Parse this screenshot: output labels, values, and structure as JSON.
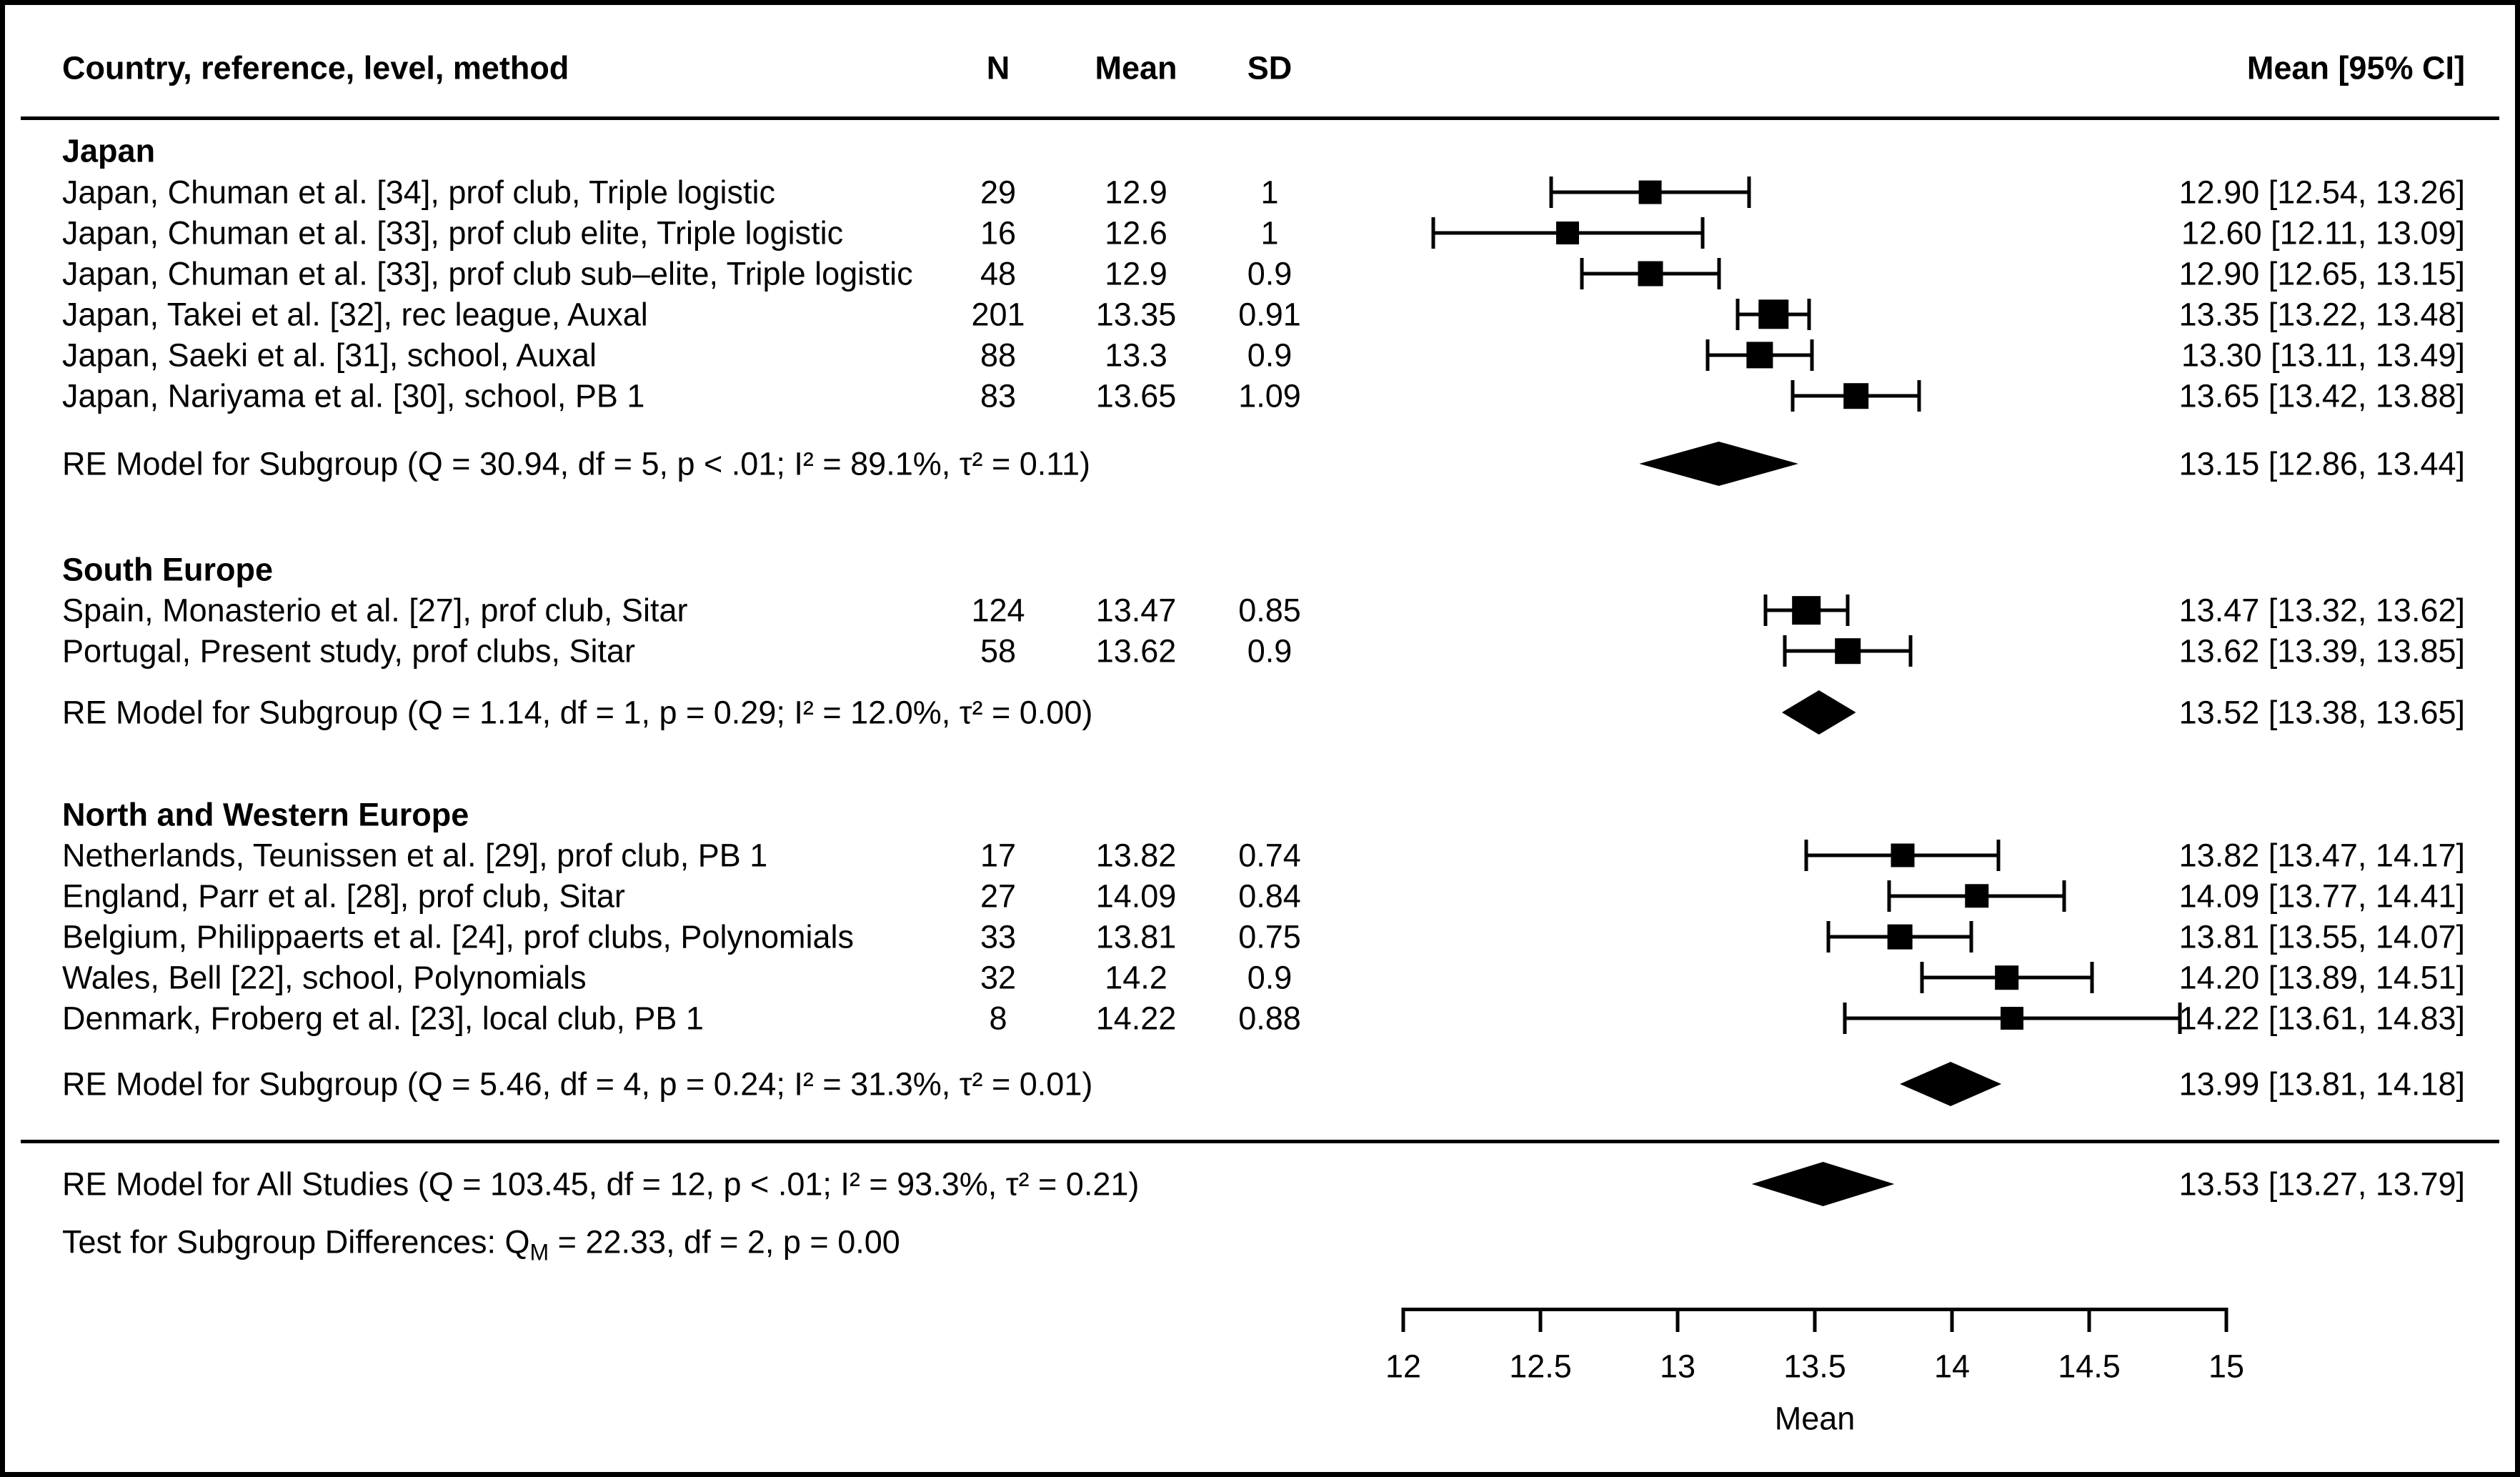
{
  "header": {
    "col_label": "Country, reference, level, method",
    "col_n": "N",
    "col_mean": "Mean",
    "col_sd": "SD",
    "col_ci": "Mean [95% CI]"
  },
  "chart_data": {
    "type": "forest",
    "xlabel": "Mean",
    "x_range": [
      12,
      15
    ],
    "x_ticks": [
      "12",
      "12.5",
      "13",
      "13.5",
      "14",
      "14.5",
      "15"
    ],
    "groups": [
      {
        "label": "Japan",
        "studies": [
          {
            "label": "Japan, Chuman et al. [34], prof club, Triple logistic",
            "n": "29",
            "mean": "12.9",
            "sd": "1",
            "est": 12.9,
            "lo": 12.54,
            "hi": 13.26,
            "ci_text": "12.90 [12.54, 13.26]"
          },
          {
            "label": "Japan, Chuman et al. [33], prof club elite, Triple logistic",
            "n": "16",
            "mean": "12.6",
            "sd": "1",
            "est": 12.6,
            "lo": 12.11,
            "hi": 13.09,
            "ci_text": "12.60 [12.11, 13.09]"
          },
          {
            "label": "Japan, Chuman et al. [33], prof club sub–elite, Triple logistic",
            "n": "48",
            "mean": "12.9",
            "sd": "0.9",
            "est": 12.9,
            "lo": 12.65,
            "hi": 13.15,
            "ci_text": "12.90 [12.65, 13.15]"
          },
          {
            "label": "Japan, Takei et al. [32], rec league, Auxal",
            "n": "201",
            "mean": "13.35",
            "sd": "0.91",
            "est": 13.35,
            "lo": 13.22,
            "hi": 13.48,
            "ci_text": "13.35 [13.22, 13.48]"
          },
          {
            "label": "Japan, Saeki et al. [31], school, Auxal",
            "n": "88",
            "mean": "13.3",
            "sd": "0.9",
            "est": 13.3,
            "lo": 13.11,
            "hi": 13.49,
            "ci_text": "13.30 [13.11, 13.49]"
          },
          {
            "label": "Japan, Nariyama et al. [30], school, PB 1",
            "n": "83",
            "mean": "13.65",
            "sd": "1.09",
            "est": 13.65,
            "lo": 13.42,
            "hi": 13.88,
            "ci_text": "13.65 [13.42, 13.88]"
          }
        ],
        "re": {
          "label": "RE Model for Subgroup (Q = 30.94, df = 5, p < .01; I² = 89.1%, τ² = 0.11)",
          "est": 13.15,
          "lo": 12.86,
          "hi": 13.44,
          "ci_text": "13.15 [12.86, 13.44]"
        }
      },
      {
        "label": "South Europe",
        "studies": [
          {
            "label": "Spain, Monasterio et al. [27], prof club, Sitar",
            "n": "124",
            "mean": "13.47",
            "sd": "0.85",
            "est": 13.47,
            "lo": 13.32,
            "hi": 13.62,
            "ci_text": "13.47 [13.32, 13.62]"
          },
          {
            "label": "Portugal, Present study, prof clubs, Sitar",
            "n": "58",
            "mean": "13.62",
            "sd": "0.9",
            "est": 13.62,
            "lo": 13.39,
            "hi": 13.85,
            "ci_text": "13.62 [13.39, 13.85]"
          }
        ],
        "re": {
          "label": "RE Model for Subgroup (Q = 1.14, df = 1, p = 0.29; I² = 12.0%, τ² = 0.00)",
          "est": 13.52,
          "lo": 13.38,
          "hi": 13.65,
          "ci_text": "13.52 [13.38, 13.65]"
        }
      },
      {
        "label": "North and Western Europe",
        "studies": [
          {
            "label": "Netherlands, Teunissen et al. [29], prof club, PB 1",
            "n": "17",
            "mean": "13.82",
            "sd": "0.74",
            "est": 13.82,
            "lo": 13.47,
            "hi": 14.17,
            "ci_text": "13.82 [13.47, 14.17]"
          },
          {
            "label": "England, Parr et al. [28], prof club, Sitar",
            "n": "27",
            "mean": "14.09",
            "sd": "0.84",
            "est": 14.09,
            "lo": 13.77,
            "hi": 14.41,
            "ci_text": "14.09 [13.77, 14.41]"
          },
          {
            "label": "Belgium, Philippaerts et al. [24], prof clubs, Polynomials",
            "n": "33",
            "mean": "13.81",
            "sd": "0.75",
            "est": 13.81,
            "lo": 13.55,
            "hi": 14.07,
            "ci_text": "13.81 [13.55, 14.07]"
          },
          {
            "label": "Wales, Bell [22], school, Polynomials",
            "n": "32",
            "mean": "14.2",
            "sd": "0.9",
            "est": 14.2,
            "lo": 13.89,
            "hi": 14.51,
            "ci_text": "14.20 [13.89, 14.51]"
          },
          {
            "label": "Denmark, Froberg et al. [23], local club, PB 1",
            "n": "8",
            "mean": "14.22",
            "sd": "0.88",
            "est": 14.22,
            "lo": 13.61,
            "hi": 14.83,
            "ci_text": "14.22 [13.61, 14.83]"
          }
        ],
        "re": {
          "label": "RE Model for Subgroup (Q = 5.46, df = 4, p = 0.24; I² = 31.3%, τ² = 0.01)",
          "est": 13.99,
          "lo": 13.81,
          "hi": 14.18,
          "ci_text": "13.99 [13.81, 14.18]"
        }
      }
    ],
    "overall": {
      "label": "RE Model for All Studies (Q = 103.45, df = 12, p < .01; I² = 93.3%, τ² = 0.21)",
      "est": 13.53,
      "lo": 13.27,
      "hi": 13.79,
      "ci_text": "13.53 [13.27, 13.79]"
    },
    "subgroup_test": {
      "prefix": "Test for Subgroup Differences: Q",
      "sub": "M",
      "suffix": " = 22.33, df = 2, p = 0.00"
    }
  }
}
